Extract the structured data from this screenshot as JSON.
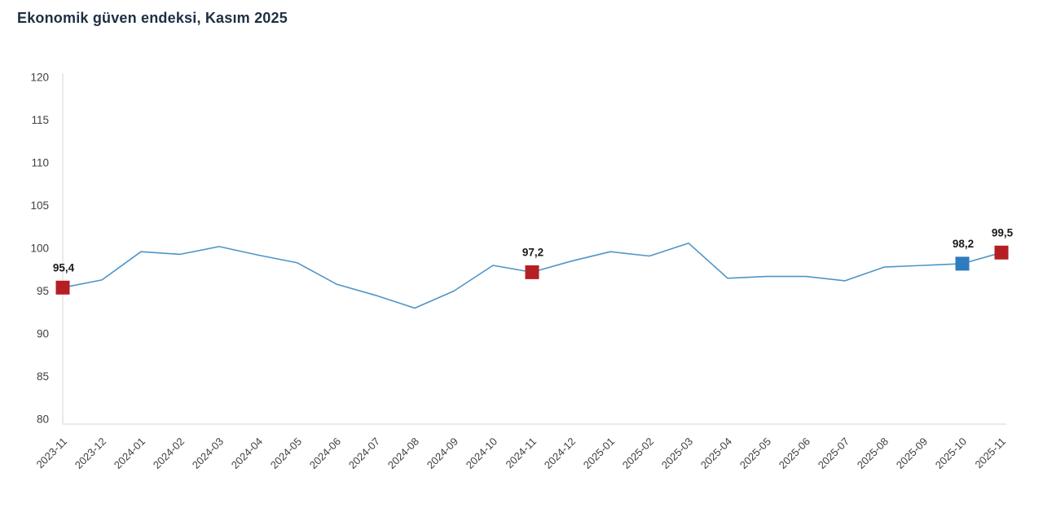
{
  "page": {
    "title": "Ekonomik güven endeksi, Kasım 2025"
  },
  "chart_data": {
    "type": "line",
    "title": "Ekonomik güven endeksi, Kasım 2025",
    "x": [
      "2023-11",
      "2023-12",
      "2024-01",
      "2024-02",
      "2024-03",
      "2024-04",
      "2024-05",
      "2024-06",
      "2024-07",
      "2024-08",
      "2024-09",
      "2024-10",
      "2024-11",
      "2024-12",
      "2025-01",
      "2025-02",
      "2025-03",
      "2025-04",
      "2025-05",
      "2025-06",
      "2025-07",
      "2025-08",
      "2025-09",
      "2025-10",
      "2025-11"
    ],
    "values": [
      95.4,
      96.3,
      99.6,
      99.3,
      100.2,
      99.2,
      98.3,
      95.8,
      94.5,
      93.0,
      95.0,
      98.0,
      97.2,
      98.5,
      99.6,
      99.1,
      100.6,
      96.5,
      96.7,
      96.7,
      96.2,
      97.8,
      98.0,
      98.2,
      99.5
    ],
    "ylim": [
      80,
      120
    ],
    "ytick_step": 5,
    "yticks": [
      "80",
      "85",
      "90",
      "95",
      "100",
      "105",
      "110",
      "115",
      "120"
    ],
    "grid": false,
    "legend": "none",
    "line_color": "#4e95c8",
    "axis_color": "#d6d6d6",
    "tick_label_color": "#404040",
    "highlights": [
      {
        "index": 0,
        "label": "95,4",
        "color": "#b51f24"
      },
      {
        "index": 12,
        "label": "97,2",
        "color": "#b51f24"
      },
      {
        "index": 23,
        "label": "98,2",
        "color": "#2e7bbf"
      },
      {
        "index": 24,
        "label": "99,5",
        "color": "#b51f24"
      }
    ]
  }
}
